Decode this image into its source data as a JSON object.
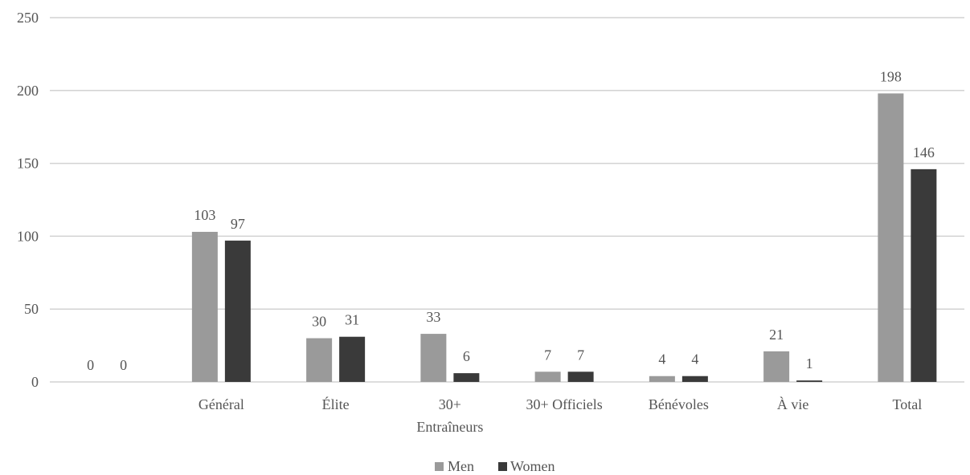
{
  "chart_data": {
    "type": "bar",
    "categories": [
      "",
      "Général",
      "Élite",
      "30+ Entraîneurs",
      "30+ Officiels",
      "Bénévoles",
      "À vie",
      "Total"
    ],
    "category_lines": [
      [
        ""
      ],
      [
        "Général"
      ],
      [
        "Élite"
      ],
      [
        "30+",
        "Entraîneurs"
      ],
      [
        "30+ Officiels"
      ],
      [
        "Bénévoles"
      ],
      [
        "À vie"
      ],
      [
        "Total"
      ]
    ],
    "series": [
      {
        "name": "Men",
        "color": "#9a9a9a",
        "values": [
          0,
          103,
          30,
          33,
          7,
          4,
          21,
          198
        ]
      },
      {
        "name": "Women",
        "color": "#3a3a3a",
        "values": [
          0,
          97,
          31,
          6,
          7,
          4,
          1,
          146
        ]
      }
    ],
    "yticks": [
      "0",
      "50",
      "100",
      "150",
      "200",
      "250"
    ],
    "ylim": [
      0,
      250
    ],
    "grid": true,
    "legend_position": "bottom-center",
    "title": "",
    "xlabel": "",
    "ylabel": ""
  }
}
